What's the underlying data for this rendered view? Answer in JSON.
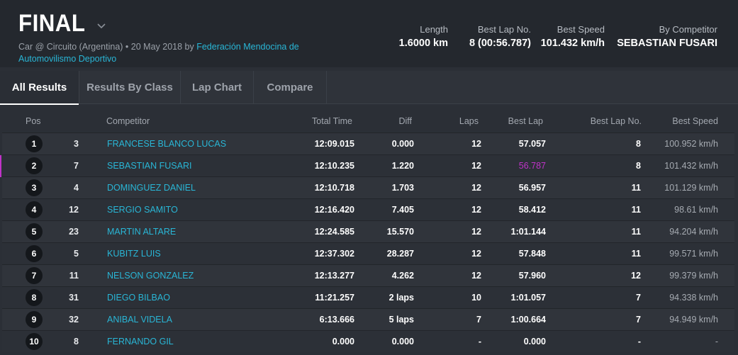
{
  "event": {
    "title": "FINAL",
    "subtitle_prefix": "Car @ Circuito (Argentina) • 20 May 2018 by ",
    "organizer": "Federación Mendocina de Automovilismo Deportivo"
  },
  "stats": [
    {
      "label": "Length",
      "value": "1.6000 km"
    },
    {
      "label": "Best Lap No.",
      "value": "8 (00:56.787)"
    },
    {
      "label": "Best Speed",
      "value": "101.432 km/h"
    },
    {
      "label": "By Competitor",
      "value": "SEBASTIAN FUSARI"
    }
  ],
  "tabs": [
    "All Results",
    "Results By Class",
    "Lap Chart",
    "Compare"
  ],
  "columns": [
    "Pos",
    "Competitor",
    "Total Time",
    "Diff",
    "Laps",
    "Best Lap",
    "Best Lap No.",
    "Best Speed"
  ],
  "rows": [
    {
      "pos": "1",
      "num": "3",
      "name": "FRANCESE BLANCO LUCAS",
      "total": "12:09.015",
      "diff": "0.000",
      "laps": "12",
      "best_lap": "57.057",
      "best_lap_no": "8",
      "best_speed": "100.952 km/h"
    },
    {
      "pos": "2",
      "num": "7",
      "name": "SEBASTIAN FUSARI",
      "total": "12:10.235",
      "diff": "1.220",
      "laps": "12",
      "best_lap": "56.787",
      "best_lap_no": "8",
      "best_speed": "101.432 km/h",
      "highlight": true
    },
    {
      "pos": "3",
      "num": "4",
      "name": "DOMINGUEZ DANIEL",
      "total": "12:10.718",
      "diff": "1.703",
      "laps": "12",
      "best_lap": "56.957",
      "best_lap_no": "11",
      "best_speed": "101.129 km/h"
    },
    {
      "pos": "4",
      "num": "12",
      "name": "SERGIO SAMITO",
      "total": "12:16.420",
      "diff": "7.405",
      "laps": "12",
      "best_lap": "58.412",
      "best_lap_no": "11",
      "best_speed": "98.61 km/h"
    },
    {
      "pos": "5",
      "num": "23",
      "name": "MARTIN ALTARE",
      "total": "12:24.585",
      "diff": "15.570",
      "laps": "12",
      "best_lap": "1:01.144",
      "best_lap_no": "11",
      "best_speed": "94.204 km/h"
    },
    {
      "pos": "6",
      "num": "5",
      "name": "KUBITZ LUIS",
      "total": "12:37.302",
      "diff": "28.287",
      "laps": "12",
      "best_lap": "57.848",
      "best_lap_no": "11",
      "best_speed": "99.571 km/h"
    },
    {
      "pos": "7",
      "num": "11",
      "name": "NELSON GONZALEZ",
      "total": "12:13.277",
      "diff": "4.262",
      "laps": "12",
      "best_lap": "57.960",
      "best_lap_no": "12",
      "best_speed": "99.379 km/h"
    },
    {
      "pos": "8",
      "num": "31",
      "name": "DIEGO BILBAO",
      "total": "11:21.257",
      "diff": "2 laps",
      "laps": "10",
      "best_lap": "1:01.057",
      "best_lap_no": "7",
      "best_speed": "94.338 km/h"
    },
    {
      "pos": "9",
      "num": "32",
      "name": "ANIBAL VIDELA",
      "total": "6:13.666",
      "diff": "5 laps",
      "laps": "7",
      "best_lap": "1:00.664",
      "best_lap_no": "7",
      "best_speed": "94.949 km/h"
    },
    {
      "pos": "10",
      "num": "8",
      "name": "FERNANDO GIL",
      "total": "0.000",
      "diff": "0.000",
      "laps": "-",
      "best_lap": "0.000",
      "best_lap_no": "-",
      "best_speed": "-"
    }
  ],
  "colors": {
    "accent": "#29b6d6",
    "highlight": "#c033c8"
  }
}
